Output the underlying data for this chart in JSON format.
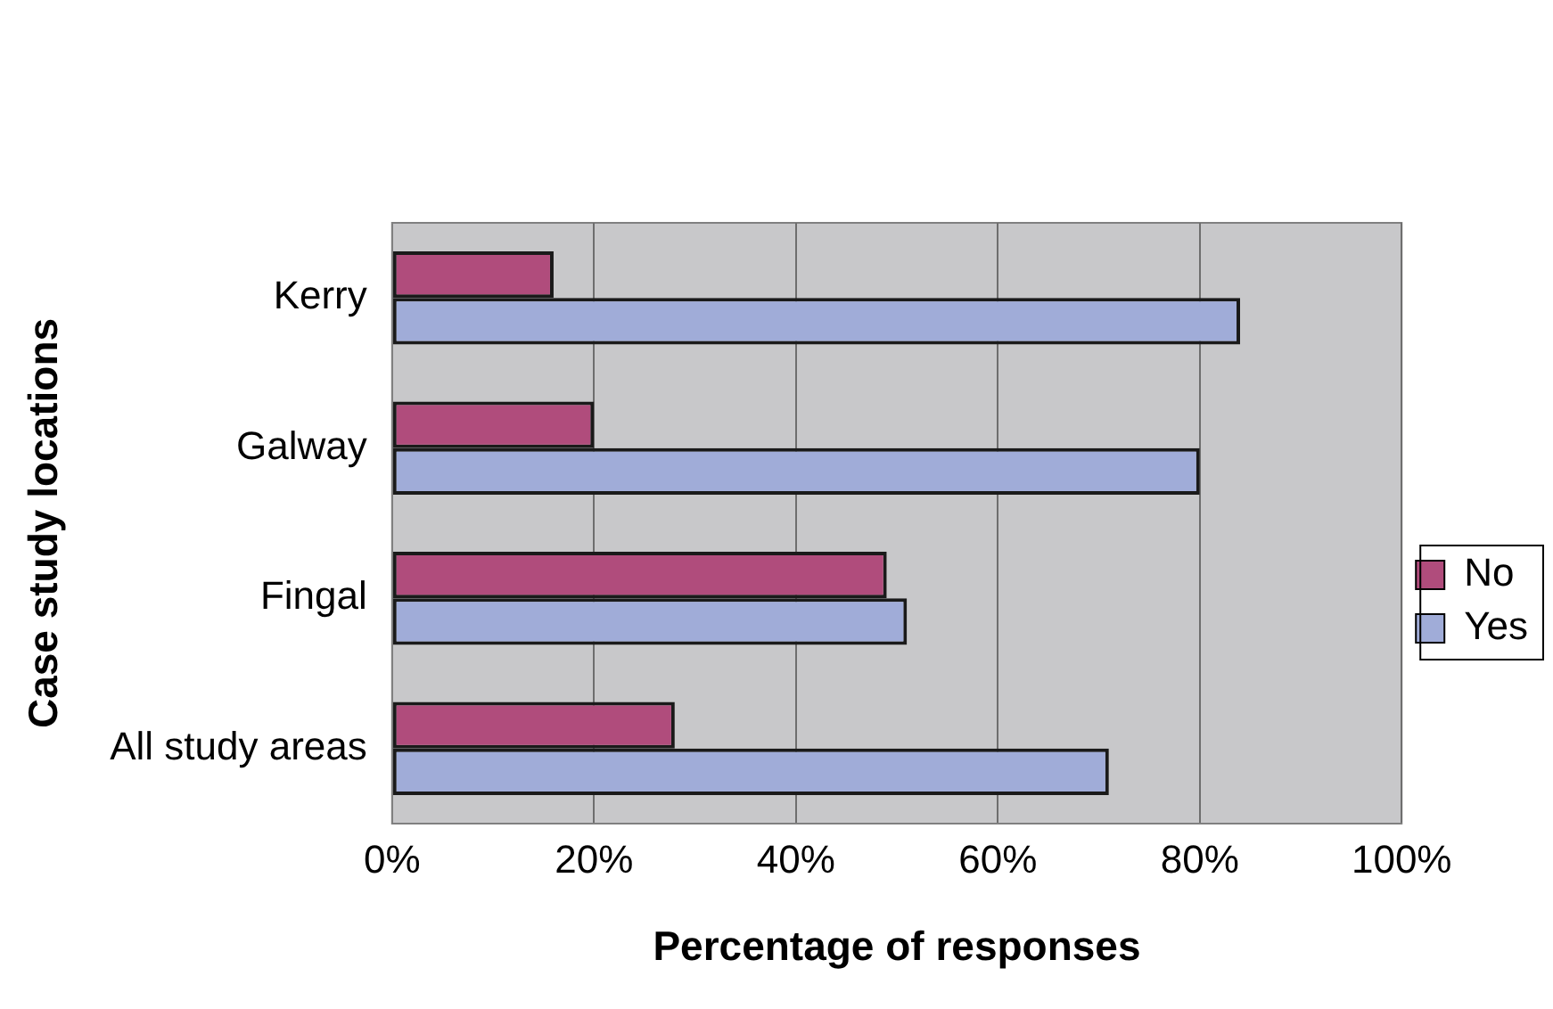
{
  "chart_data": {
    "type": "bar",
    "orientation": "horizontal",
    "xlabel": "Percentage of responses",
    "ylabel": "Case study locations",
    "categories": [
      "Kerry",
      "Galway",
      "Fingal",
      "All study areas"
    ],
    "series": [
      {
        "name": "No",
        "color": "#b04c7c",
        "values": [
          16,
          20,
          49,
          28
        ]
      },
      {
        "name": "Yes",
        "color": "#a0acd8",
        "values": [
          84,
          80,
          51,
          71
        ]
      }
    ],
    "xlim": [
      0,
      100
    ],
    "xticks": [
      {
        "value": 0,
        "label": "0%"
      },
      {
        "value": 20,
        "label": "20%"
      },
      {
        "value": 40,
        "label": "40%"
      },
      {
        "value": 60,
        "label": "60%"
      },
      {
        "value": 80,
        "label": "80%"
      },
      {
        "value": 100,
        "label": "100%"
      }
    ],
    "grid": "x",
    "legend": "right"
  }
}
